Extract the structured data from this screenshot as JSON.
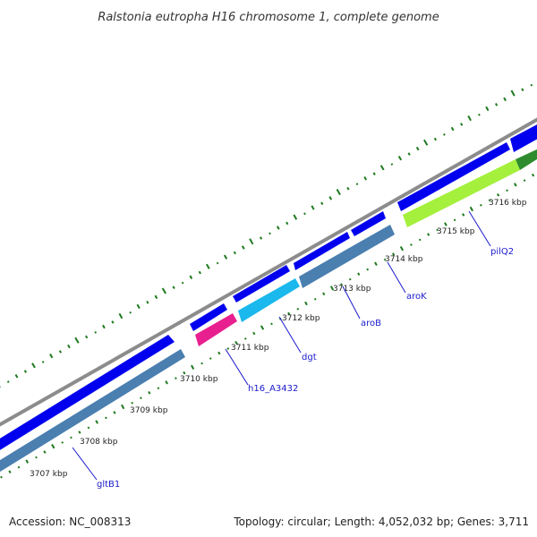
{
  "title": "Ralstonia eutropha H16 chromosome 1, complete genome",
  "accession": "Accession: NC_008313",
  "summary": "Topology: circular; Length: 4,052,032 bp; Genes: 3,711",
  "colors": {
    "backbone": "#8c8c8c",
    "forward_cds": "#0000ee",
    "reverse_cds": "#4a7fb0",
    "pink_feature": "#e8208f",
    "cyan_feature": "#1ab8ec",
    "green_feature": "#a4f03c",
    "dark_green_feature": "#2e8c2e",
    "gc_ticks": "#1e7a1e",
    "link": "#1a1acc"
  },
  "ticks": [
    "3707 kbp",
    "3708 kbp",
    "3709 kbp",
    "3710 kbp",
    "3711 kbp",
    "3712 kbp",
    "3713 kbp",
    "3714 kbp",
    "3715 kbp",
    "3716 kbp"
  ],
  "genes": [
    {
      "name": "gltB1"
    },
    {
      "name": "h16_A3432"
    },
    {
      "name": "dgt"
    },
    {
      "name": "aroB"
    },
    {
      "name": "aroK"
    },
    {
      "name": "pilQ2"
    }
  ]
}
